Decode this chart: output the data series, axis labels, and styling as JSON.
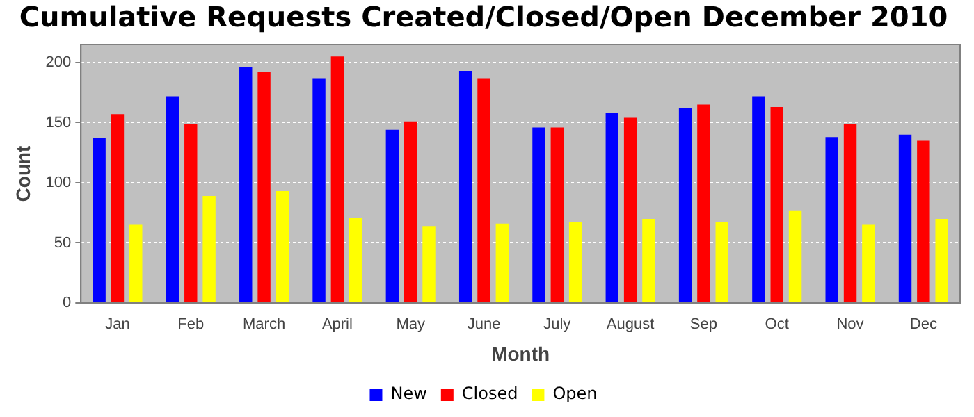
{
  "chart_data": {
    "type": "bar",
    "title": "Cumulative Requests Created/Closed/Open December 2010",
    "xlabel": "Month",
    "ylabel": "Count",
    "categories": [
      "Jan",
      "Feb",
      "March",
      "April",
      "May",
      "June",
      "July",
      "August",
      "Sep",
      "Oct",
      "Nov",
      "Dec"
    ],
    "series": [
      {
        "name": "New",
        "color": "#0000ff",
        "values": [
          137,
          172,
          196,
          187,
          144,
          193,
          146,
          158,
          162,
          172,
          138,
          140
        ]
      },
      {
        "name": "Closed",
        "color": "#ff0000",
        "values": [
          157,
          149,
          192,
          205,
          151,
          187,
          146,
          154,
          165,
          163,
          149,
          135
        ]
      },
      {
        "name": "Open",
        "color": "#ffff00",
        "values": [
          65,
          89,
          93,
          71,
          64,
          66,
          67,
          70,
          67,
          77,
          65,
          70
        ]
      }
    ],
    "ylim": [
      0,
      215
    ],
    "yticks": [
      0,
      50,
      100,
      150,
      200
    ],
    "grid": "y",
    "legend": "bottom"
  }
}
